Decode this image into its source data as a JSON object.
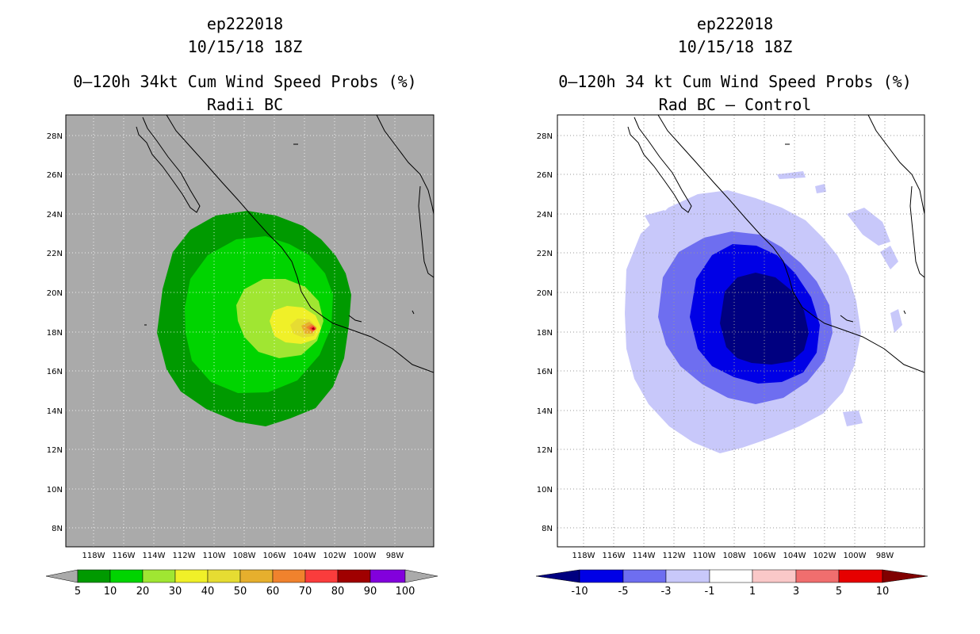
{
  "storm_id": "ep222018",
  "left_panel": {
    "storm_id": "ep222018",
    "datetime": "10/15/18 18Z",
    "title": "0–120h 34kt Cum Wind Speed Probs (%)",
    "subtitle": "Radii BC",
    "background_color": "#aaaaaa",
    "lat_labels": [
      "8N",
      "10N",
      "12N",
      "14N",
      "16N",
      "18N",
      "20N",
      "22N",
      "24N",
      "26N",
      "28N"
    ],
    "lon_labels": [
      "118W",
      "116W",
      "114W",
      "112W",
      "110W",
      "108W",
      "106W",
      "104W",
      "102W",
      "100W",
      "98W"
    ],
    "colorbar": {
      "levels": [
        "5",
        "10",
        "20",
        "30",
        "40",
        "50",
        "60",
        "70",
        "80",
        "90",
        "100"
      ],
      "colors": [
        "#009a00",
        "#00d400",
        "#a0e632",
        "#f0f028",
        "#e6dc32",
        "#e6af2d",
        "#f0822d",
        "#fa3c3c",
        "#a00000",
        "#8200dc"
      ],
      "end_color": "#aaaaaa"
    }
  },
  "right_panel": {
    "storm_id": "ep222018",
    "datetime": "10/15/18 18Z",
    "title": "0–120h 34 kt Cum Wind Speed Probs (%)",
    "subtitle": "Rad BC – Control",
    "background_color": "#ffffff",
    "lat_labels": [
      "8N",
      "10N",
      "12N",
      "14N",
      "16N",
      "18N",
      "20N",
      "22N",
      "24N",
      "26N",
      "28N"
    ],
    "lon_labels": [
      "118W",
      "116W",
      "114W",
      "112W",
      "110W",
      "108W",
      "106W",
      "104W",
      "102W",
      "100W",
      "98W"
    ],
    "colorbar": {
      "levels": [
        "-10",
        "-5",
        "-3",
        "-1",
        "1",
        "3",
        "5",
        "10"
      ],
      "colors": [
        "#0000e6",
        "#6e6ef0",
        "#c8c8fa",
        "#ffffff",
        "#fac8c8",
        "#f06e6e",
        "#e60000"
      ],
      "left_end_color": "#000080",
      "right_end_color": "#800000"
    }
  }
}
